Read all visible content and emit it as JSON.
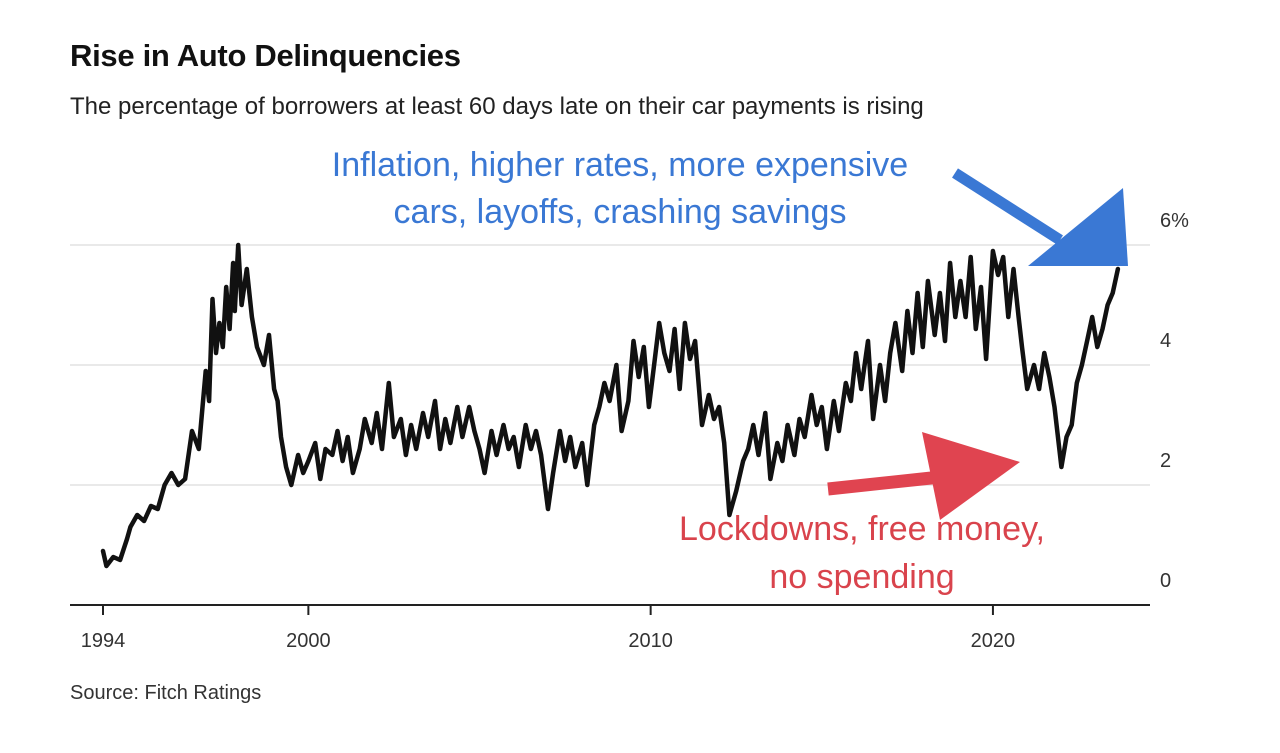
{
  "chart_data": {
    "type": "line",
    "title": "Rise in Auto Delinquencies",
    "subtitle": "The percentage of borrowers at least 60 days late on their car payments is rising",
    "source": "Source: Fitch Ratings",
    "x_ticks": [
      {
        "value": 1994,
        "label": "1994"
      },
      {
        "value": 2000,
        "label": "2000"
      },
      {
        "value": 2010,
        "label": "2010"
      },
      {
        "value": 2020,
        "label": "2020"
      }
    ],
    "y_ticks": [
      {
        "value": 0,
        "label": "0"
      },
      {
        "value": 2,
        "label": "2"
      },
      {
        "value": 4,
        "label": "4"
      },
      {
        "value": 6,
        "label": "6%"
      }
    ],
    "xlim": [
      1994,
      2023.8
    ],
    "ylim": [
      0,
      6
    ],
    "grid": true,
    "line_color": "#111111",
    "series": [
      {
        "values": [
          [
            1994.0,
            0.9
          ],
          [
            1994.1,
            0.65
          ],
          [
            1994.3,
            0.8
          ],
          [
            1994.5,
            0.75
          ],
          [
            1994.7,
            1.1
          ],
          [
            1994.8,
            1.3
          ],
          [
            1995.0,
            1.5
          ],
          [
            1995.2,
            1.4
          ],
          [
            1995.4,
            1.65
          ],
          [
            1995.6,
            1.6
          ],
          [
            1995.8,
            2.0
          ],
          [
            1996.0,
            2.2
          ],
          [
            1996.2,
            2.0
          ],
          [
            1996.4,
            2.1
          ],
          [
            1996.6,
            2.9
          ],
          [
            1996.8,
            2.6
          ],
          [
            1997.0,
            3.9
          ],
          [
            1997.1,
            3.4
          ],
          [
            1997.2,
            5.1
          ],
          [
            1997.3,
            4.2
          ],
          [
            1997.4,
            4.7
          ],
          [
            1997.5,
            4.3
          ],
          [
            1997.6,
            5.3
          ],
          [
            1997.7,
            4.6
          ],
          [
            1997.8,
            5.7
          ],
          [
            1997.85,
            4.9
          ],
          [
            1997.95,
            6.0
          ],
          [
            1998.05,
            5.0
          ],
          [
            1998.2,
            5.6
          ],
          [
            1998.35,
            4.8
          ],
          [
            1998.5,
            4.3
          ],
          [
            1998.7,
            4.0
          ],
          [
            1998.85,
            4.5
          ],
          [
            1999.0,
            3.6
          ],
          [
            1999.1,
            3.4
          ],
          [
            1999.2,
            2.8
          ],
          [
            1999.35,
            2.3
          ],
          [
            1999.5,
            2.0
          ],
          [
            1999.7,
            2.5
          ],
          [
            1999.85,
            2.2
          ],
          [
            2000.0,
            2.4
          ],
          [
            2000.2,
            2.7
          ],
          [
            2000.35,
            2.1
          ],
          [
            2000.5,
            2.6
          ],
          [
            2000.7,
            2.5
          ],
          [
            2000.85,
            2.9
          ],
          [
            2001.0,
            2.4
          ],
          [
            2001.15,
            2.8
          ],
          [
            2001.3,
            2.2
          ],
          [
            2001.5,
            2.6
          ],
          [
            2001.65,
            3.1
          ],
          [
            2001.85,
            2.7
          ],
          [
            2002.0,
            3.2
          ],
          [
            2002.15,
            2.6
          ],
          [
            2002.35,
            3.7
          ],
          [
            2002.5,
            2.8
          ],
          [
            2002.7,
            3.1
          ],
          [
            2002.85,
            2.5
          ],
          [
            2003.0,
            3.0
          ],
          [
            2003.15,
            2.6
          ],
          [
            2003.35,
            3.2
          ],
          [
            2003.5,
            2.8
          ],
          [
            2003.7,
            3.4
          ],
          [
            2003.85,
            2.6
          ],
          [
            2004.0,
            3.1
          ],
          [
            2004.15,
            2.7
          ],
          [
            2004.35,
            3.3
          ],
          [
            2004.5,
            2.8
          ],
          [
            2004.7,
            3.3
          ],
          [
            2004.85,
            2.9
          ],
          [
            2005.0,
            2.6
          ],
          [
            2005.15,
            2.2
          ],
          [
            2005.35,
            2.9
          ],
          [
            2005.5,
            2.5
          ],
          [
            2005.7,
            3.0
          ],
          [
            2005.85,
            2.6
          ],
          [
            2006.0,
            2.8
          ],
          [
            2006.15,
            2.3
          ],
          [
            2006.35,
            3.0
          ],
          [
            2006.5,
            2.6
          ],
          [
            2006.65,
            2.9
          ],
          [
            2006.8,
            2.5
          ],
          [
            2007.0,
            1.6
          ],
          [
            2007.15,
            2.2
          ],
          [
            2007.35,
            2.9
          ],
          [
            2007.5,
            2.4
          ],
          [
            2007.65,
            2.8
          ],
          [
            2007.8,
            2.3
          ],
          [
            2008.0,
            2.7
          ],
          [
            2008.15,
            2.0
          ],
          [
            2008.35,
            3.0
          ],
          [
            2008.5,
            3.3
          ],
          [
            2008.65,
            3.7
          ],
          [
            2008.8,
            3.4
          ],
          [
            2009.0,
            4.0
          ],
          [
            2009.15,
            2.9
          ],
          [
            2009.35,
            3.4
          ],
          [
            2009.5,
            4.4
          ],
          [
            2009.65,
            3.8
          ],
          [
            2009.8,
            4.3
          ],
          [
            2009.95,
            3.3
          ],
          [
            2010.1,
            4.0
          ],
          [
            2010.25,
            4.7
          ],
          [
            2010.4,
            4.2
          ],
          [
            2010.55,
            3.9
          ],
          [
            2010.7,
            4.6
          ],
          [
            2010.85,
            3.6
          ],
          [
            2011.0,
            4.7
          ],
          [
            2011.15,
            4.1
          ],
          [
            2011.3,
            4.4
          ],
          [
            2011.5,
            3.0
          ],
          [
            2011.7,
            3.5
          ],
          [
            2011.85,
            3.1
          ],
          [
            2012.0,
            3.3
          ],
          [
            2012.15,
            2.7
          ],
          [
            2012.3,
            1.5
          ],
          [
            2012.5,
            1.9
          ],
          [
            2012.7,
            2.4
          ],
          [
            2012.85,
            2.6
          ],
          [
            2013.0,
            3.0
          ],
          [
            2013.15,
            2.5
          ],
          [
            2013.35,
            3.2
          ],
          [
            2013.5,
            2.1
          ],
          [
            2013.7,
            2.7
          ],
          [
            2013.85,
            2.4
          ],
          [
            2014.0,
            3.0
          ],
          [
            2014.2,
            2.5
          ],
          [
            2014.35,
            3.1
          ],
          [
            2014.5,
            2.8
          ],
          [
            2014.7,
            3.5
          ],
          [
            2014.85,
            3.0
          ],
          [
            2015.0,
            3.3
          ],
          [
            2015.15,
            2.6
          ],
          [
            2015.35,
            3.4
          ],
          [
            2015.5,
            2.9
          ],
          [
            2015.7,
            3.7
          ],
          [
            2015.85,
            3.4
          ],
          [
            2016.0,
            4.2
          ],
          [
            2016.15,
            3.6
          ],
          [
            2016.35,
            4.4
          ],
          [
            2016.5,
            3.1
          ],
          [
            2016.7,
            4.0
          ],
          [
            2016.85,
            3.4
          ],
          [
            2017.0,
            4.2
          ],
          [
            2017.15,
            4.7
          ],
          [
            2017.35,
            3.9
          ],
          [
            2017.5,
            4.9
          ],
          [
            2017.65,
            4.2
          ],
          [
            2017.8,
            5.2
          ],
          [
            2017.95,
            4.3
          ],
          [
            2018.1,
            5.4
          ],
          [
            2018.3,
            4.5
          ],
          [
            2018.45,
            5.2
          ],
          [
            2018.6,
            4.4
          ],
          [
            2018.75,
            5.7
          ],
          [
            2018.9,
            4.8
          ],
          [
            2019.05,
            5.4
          ],
          [
            2019.2,
            4.8
          ],
          [
            2019.35,
            5.8
          ],
          [
            2019.5,
            4.6
          ],
          [
            2019.65,
            5.3
          ],
          [
            2019.8,
            4.1
          ],
          [
            2020.0,
            5.9
          ],
          [
            2020.15,
            5.5
          ],
          [
            2020.3,
            5.8
          ],
          [
            2020.45,
            4.8
          ],
          [
            2020.6,
            5.6
          ],
          [
            2020.75,
            4.8
          ],
          [
            2020.85,
            4.3
          ],
          [
            2021.0,
            3.6
          ],
          [
            2021.2,
            4.0
          ],
          [
            2021.35,
            3.6
          ],
          [
            2021.5,
            4.2
          ],
          [
            2021.65,
            3.8
          ],
          [
            2021.8,
            3.3
          ],
          [
            2022.0,
            2.3
          ],
          [
            2022.15,
            2.8
          ],
          [
            2022.3,
            3.0
          ],
          [
            2022.45,
            3.7
          ],
          [
            2022.6,
            4.0
          ],
          [
            2022.75,
            4.4
          ],
          [
            2022.9,
            4.8
          ],
          [
            2023.05,
            4.3
          ],
          [
            2023.2,
            4.6
          ],
          [
            2023.35,
            5.0
          ],
          [
            2023.5,
            5.2
          ],
          [
            2023.65,
            5.6
          ]
        ]
      }
    ],
    "annotations": [
      {
        "id": "blue",
        "lines": [
          "Inflation, higher rates, more expensive",
          "cars, layoffs, crashing savings"
        ],
        "color": "#3a78d4",
        "arrow_direction": "down-right"
      },
      {
        "id": "red",
        "lines": [
          "Lockdowns, free money,",
          "no spending"
        ],
        "color": "#d9434c",
        "arrow_direction": "up-right"
      }
    ]
  }
}
